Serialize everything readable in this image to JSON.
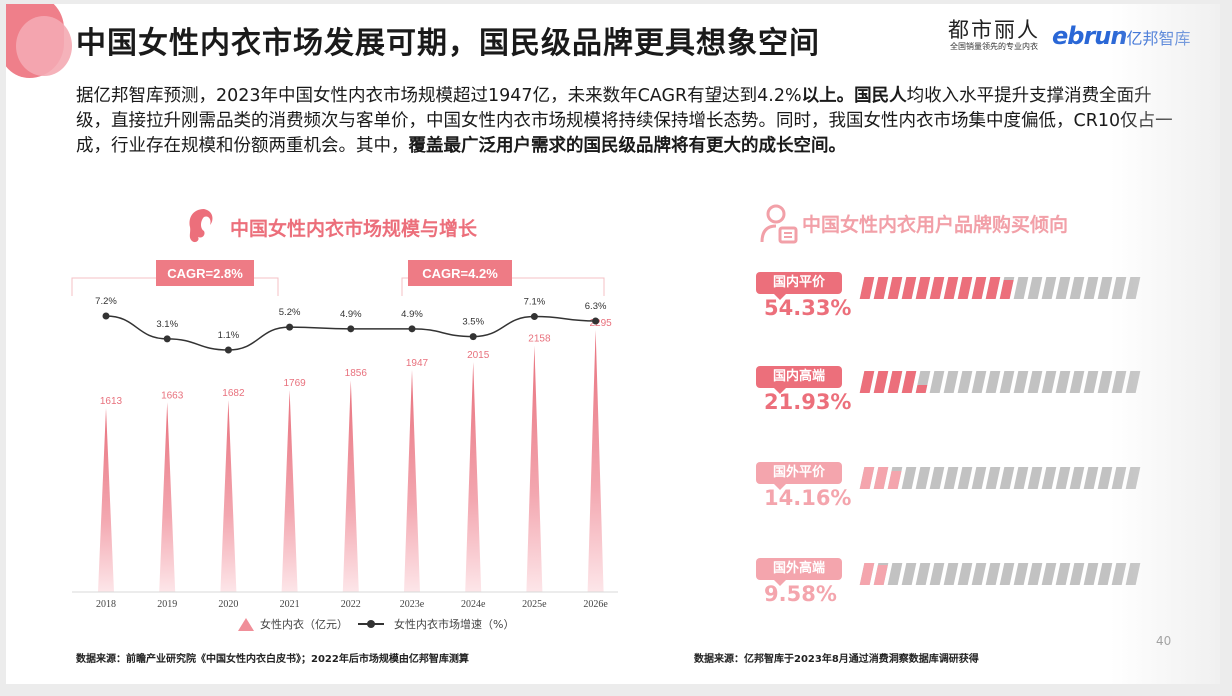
{
  "slide": {
    "title": "中国女性内衣市场发展可期，国民级品牌更具想象空间",
    "logos": {
      "brand1_name": "都市丽人",
      "brand1_slogan": "全国销量领先的专业内衣",
      "brand2_en": "ebrun",
      "brand2_cn": "亿邦智库"
    },
    "paragraph": {
      "p1": "据亿邦智库预测，2023年中国女性内衣市场规模超过1947亿，未来数年CAGR有望达到4.2%",
      "p1_bold": "以上。国民人",
      "p2": "均收入水平提升支撑消费全面升级，直接拉升刚需品类的消费频次与客单价，中国女性内衣市场规模将持续保持增长态势。同时，我国女性内衣市场集中度偏低，CR10仅占一成，行业存在规模和份额两重机会。其中，",
      "p2_bold": "覆盖最广泛用户需求的国民级品牌将有更大的成长空间。"
    },
    "left_section_title": "中国女性内衣市场规模与增长",
    "right_section_title": "中国女性内衣用户品牌购买倾向",
    "legend": {
      "bar_label": "女性内衣（亿元）",
      "line_label": "女性内衣市场增速（%）"
    },
    "source_left": "数据来源：前瞻产业研究院《中国女性内衣白皮书》；2022年后市场规模由亿邦智库测算",
    "source_right": "数据来源：亿邦智库于2023年8月通过消费洞察数据库调研获得",
    "page_number": "40",
    "colors": {
      "accent": "#ec6f7b",
      "accent_light": "#f4a5ad",
      "gray_bar": "#c2c2c2",
      "line": "#333333"
    }
  },
  "chart_data": [
    {
      "type": "bar",
      "title": "中国女性内衣市场规模与增长",
      "categories": [
        "2018",
        "2019",
        "2020",
        "2021",
        "2022",
        "2023e",
        "2024e",
        "2025e",
        "2026e"
      ],
      "series": [
        {
          "name": "女性内衣（亿元）",
          "type": "bar",
          "values": [
            1613,
            1663,
            1682,
            1769,
            1856,
            1947,
            2015,
            2158,
            2295
          ]
        },
        {
          "name": "女性内衣市场增速（%）",
          "type": "line",
          "values": [
            7.2,
            3.1,
            1.1,
            5.2,
            4.9,
            4.9,
            3.5,
            7.1,
            6.3
          ],
          "labels": [
            "7.2%",
            "3.1%",
            "1.1%",
            "5.2%",
            "4.9%",
            "4.9%",
            "3.5%",
            "7.1%",
            "6.3%"
          ]
        }
      ],
      "annotations": [
        {
          "text": "CAGR=2.8%",
          "span": [
            "2018",
            "2022"
          ]
        },
        {
          "text": "CAGR=4.2%",
          "span": [
            "2023e",
            "2026e"
          ]
        }
      ],
      "xlabel": "",
      "ylabel": "",
      "grid": false,
      "legend_position": "bottom"
    },
    {
      "type": "bar",
      "title": "中国女性内衣用户品牌购买倾向",
      "categories": [
        "国内平价",
        "国内高端",
        "国外平价",
        "国外高端"
      ],
      "values": [
        54.33,
        21.93,
        14.16,
        9.58
      ],
      "labels": [
        "54.33%",
        "21.93%",
        "14.16%",
        "9.58%"
      ],
      "segments_per_bar": 20,
      "orientation": "horizontal"
    }
  ]
}
